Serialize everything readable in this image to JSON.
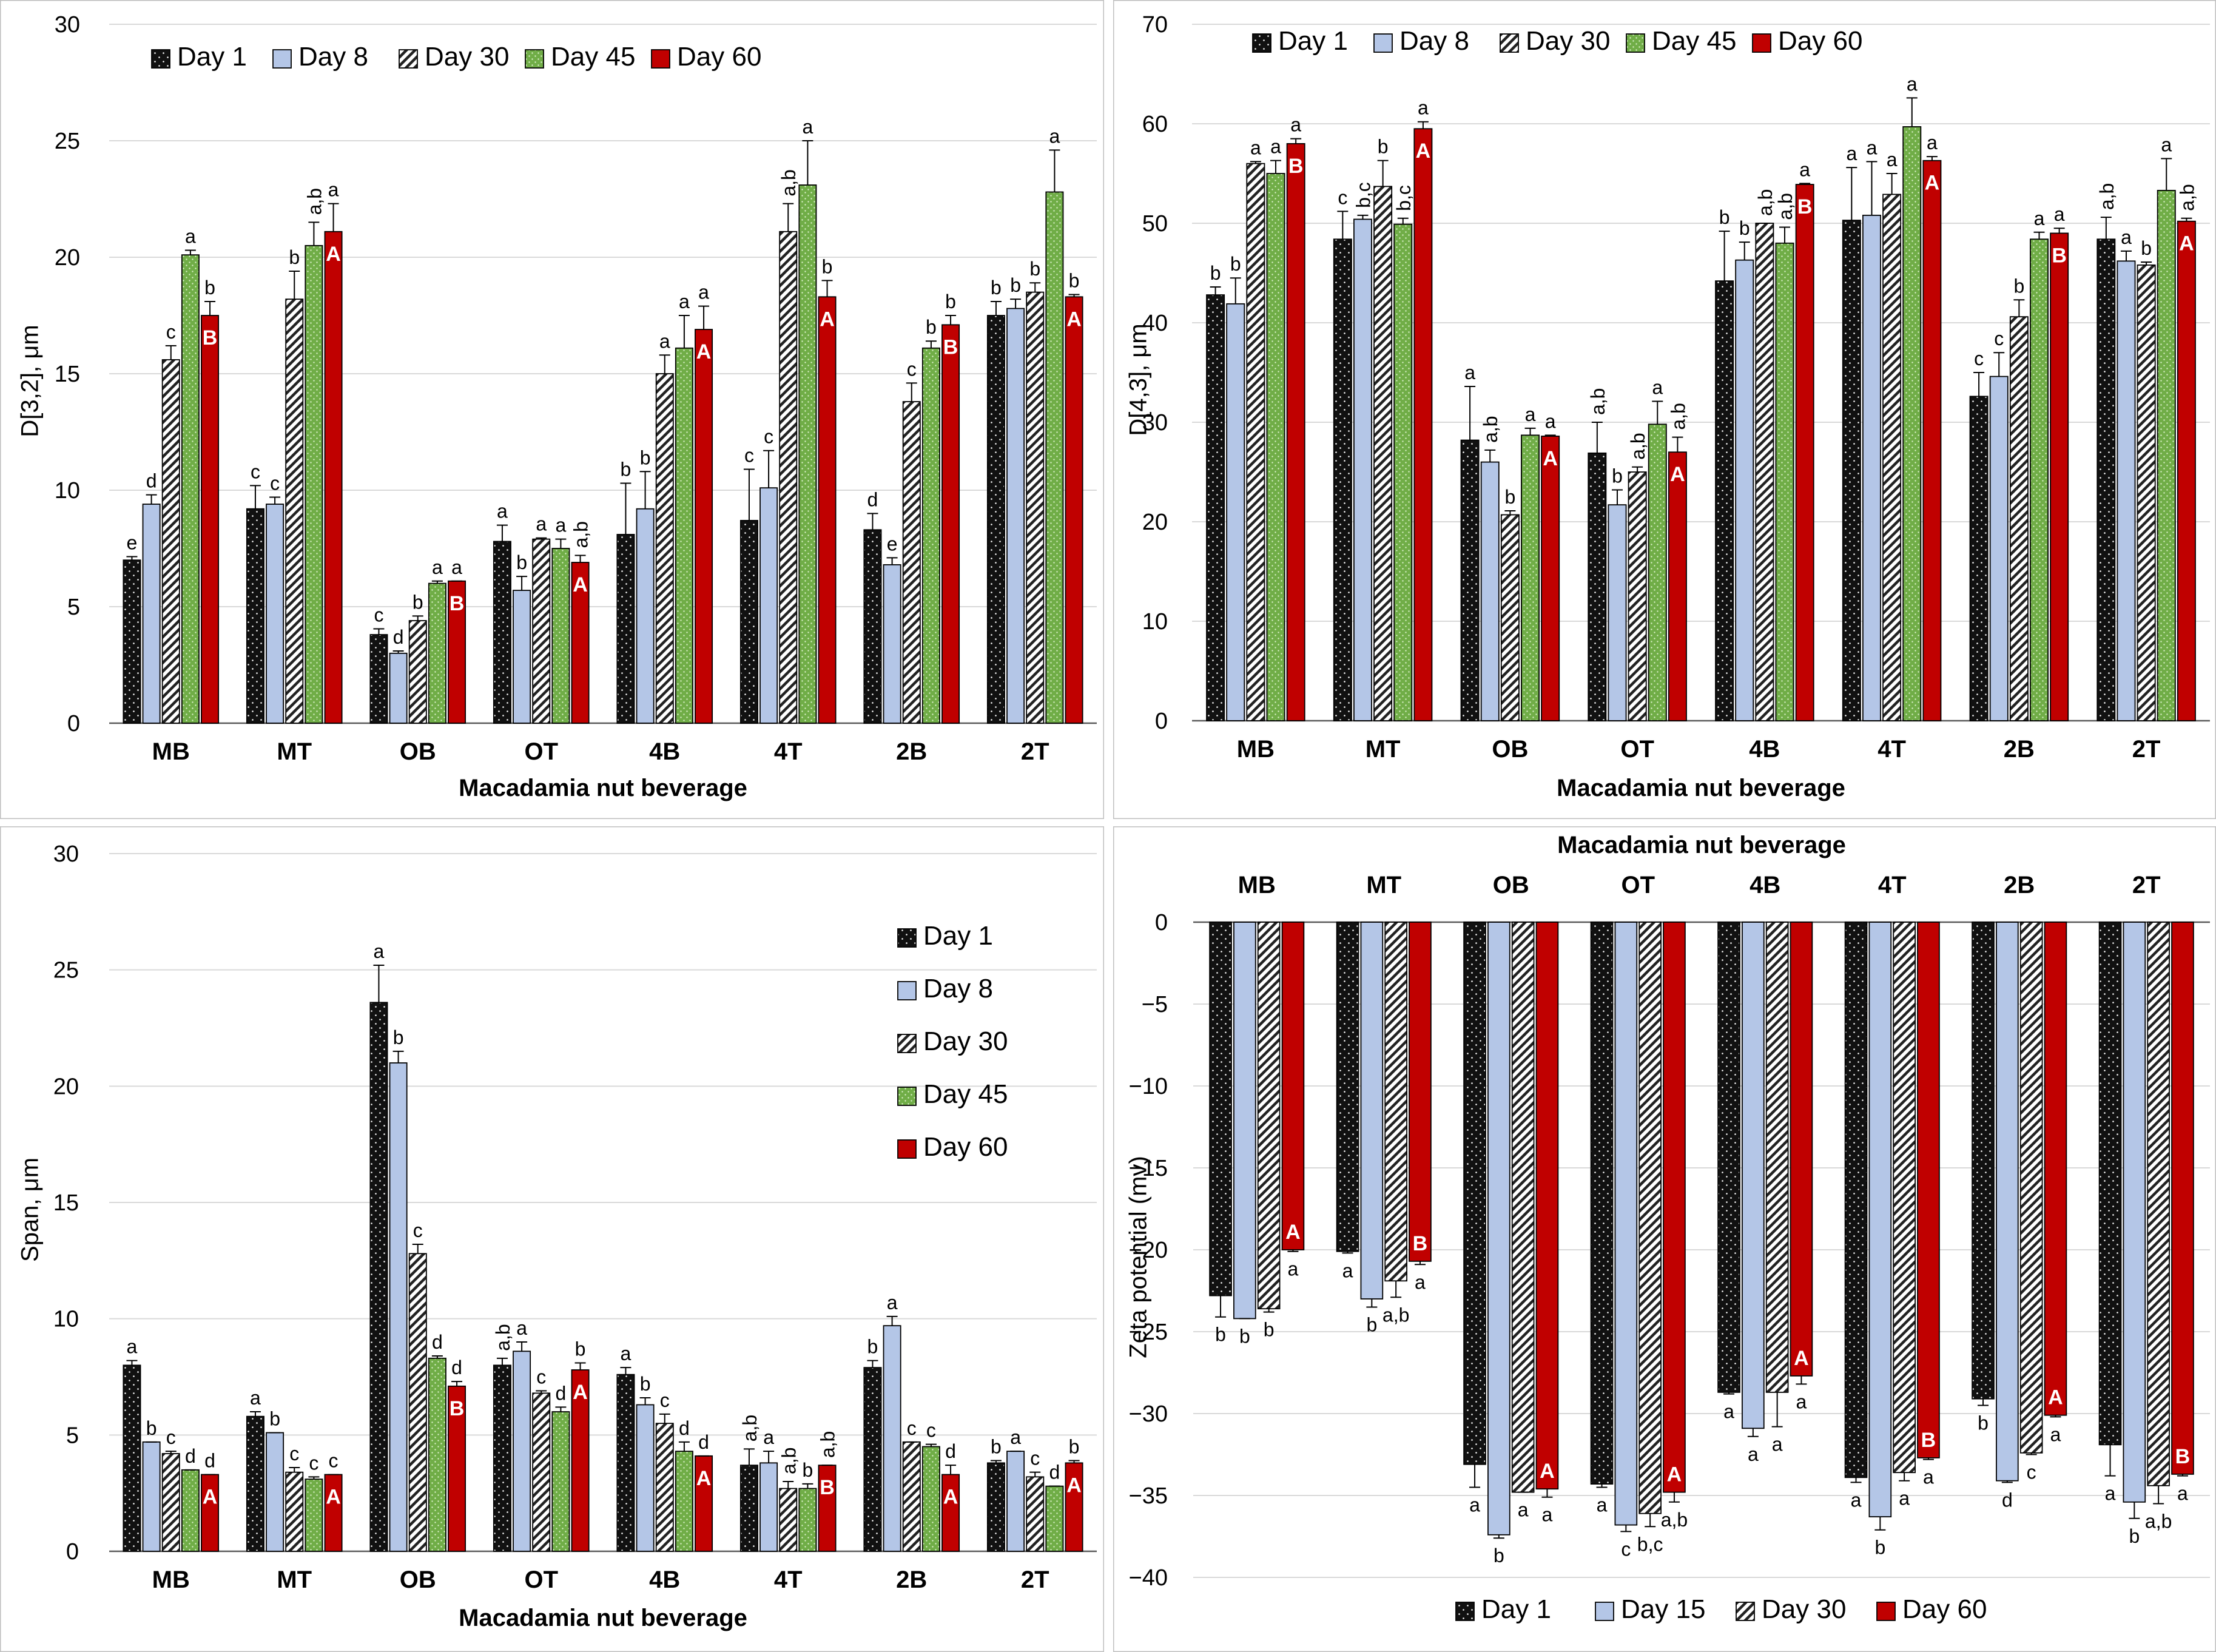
{
  "legend_colors": {
    "Day 1": "#111111",
    "Day 8": "#b4c6e7",
    "Day 15": "#b4c6e7",
    "Day 30": "#ffffff",
    "Day 45": "#70ad47",
    "Day 60": "#c00000"
  },
  "chart_data": [
    {
      "id": "d32",
      "type": "bar",
      "title": "",
      "xlabel": "Macadamia nut beverage",
      "ylabel": "D[3,2], μm",
      "ylim": [
        0,
        30
      ],
      "yticks": [
        0,
        5,
        10,
        15,
        20,
        25,
        30
      ],
      "grid": true,
      "legend_position": "top-left",
      "categories": [
        "MB",
        "MT",
        "OB",
        "OT",
        "4B",
        "4T",
        "2B",
        "2T"
      ],
      "series": [
        {
          "name": "Day 1",
          "values": [
            7.0,
            9.2,
            3.8,
            7.8,
            8.1,
            8.7,
            8.3,
            17.5
          ],
          "errors": [
            0.15,
            1.0,
            0.25,
            0.7,
            2.2,
            2.2,
            0.7,
            0.6
          ],
          "labels": [
            "e",
            "c",
            "c",
            "a",
            "b",
            "c",
            "d",
            "b"
          ]
        },
        {
          "name": "Day 8",
          "values": [
            9.4,
            9.4,
            3.0,
            5.7,
            9.2,
            10.1,
            6.8,
            17.8
          ],
          "errors": [
            0.4,
            0.3,
            0.1,
            0.6,
            1.6,
            1.6,
            0.3,
            0.4
          ],
          "labels": [
            "d",
            "c",
            "d",
            "b",
            "b",
            "c",
            "e",
            "b"
          ]
        },
        {
          "name": "Day 30",
          "values": [
            15.6,
            18.2,
            4.4,
            7.9,
            15.0,
            21.1,
            13.8,
            18.5
          ],
          "errors": [
            0.6,
            1.2,
            0.2,
            0.05,
            0.8,
            1.2,
            0.8,
            0.4
          ],
          "labels": [
            "c",
            "b",
            "b",
            "a",
            "a",
            "a,b",
            "c",
            "b"
          ]
        },
        {
          "name": "Day 45",
          "values": [
            20.1,
            20.5,
            6.0,
            7.5,
            16.1,
            23.1,
            16.1,
            22.8
          ],
          "errors": [
            0.2,
            1.0,
            0.1,
            0.4,
            1.4,
            1.9,
            0.3,
            1.8
          ],
          "labels": [
            "a",
            "a,b",
            "a",
            "a",
            "a",
            "a",
            "b",
            "a"
          ]
        },
        {
          "name": "Day 60",
          "values": [
            17.5,
            21.1,
            6.1,
            6.9,
            16.9,
            18.3,
            17.1,
            18.3
          ],
          "errors": [
            0.6,
            1.2,
            0.0,
            0.3,
            1.0,
            0.7,
            0.4,
            0.1
          ],
          "labels": [
            "b",
            "a",
            "a",
            "a,b",
            "a",
            "b",
            "b",
            "b"
          ],
          "inner_labels": [
            "B",
            "A",
            "B",
            "A",
            "A",
            "A",
            "B",
            "A"
          ]
        }
      ]
    },
    {
      "id": "d43",
      "type": "bar",
      "title": "",
      "xlabel": "Macadamia nut beverage",
      "ylabel": "D[4,3], μm",
      "ylim": [
        0,
        70
      ],
      "yticks": [
        0,
        10,
        20,
        30,
        40,
        50,
        60,
        70
      ],
      "grid": true,
      "legend_position": "top-left",
      "categories": [
        "MB",
        "MT",
        "OB",
        "OT",
        "4B",
        "4T",
        "2B",
        "2T"
      ],
      "series": [
        {
          "name": "Day 1",
          "values": [
            42.8,
            48.4,
            28.2,
            26.9,
            44.2,
            50.3,
            32.6,
            48.4
          ],
          "errors": [
            0.8,
            2.8,
            5.4,
            3.1,
            5.0,
            5.3,
            2.4,
            2.2
          ],
          "labels": [
            "b",
            "c",
            "a",
            "a,b",
            "b",
            "a",
            "c",
            "a,b"
          ]
        },
        {
          "name": "Day 8",
          "values": [
            41.9,
            50.4,
            26.0,
            21.7,
            46.3,
            50.8,
            34.6,
            46.2
          ],
          "errors": [
            2.6,
            0.4,
            1.2,
            1.5,
            1.8,
            5.4,
            2.4,
            1.0
          ],
          "labels": [
            "b",
            "b,c",
            "a,b",
            "b",
            "b",
            "a",
            "c",
            "a"
          ]
        },
        {
          "name": "Day 30",
          "values": [
            56.0,
            53.7,
            20.7,
            25.0,
            50.0,
            52.9,
            40.6,
            45.8
          ],
          "errors": [
            0.2,
            2.6,
            0.4,
            0.5,
            0.0,
            2.1,
            1.7,
            0.3
          ],
          "labels": [
            "a",
            "b",
            "b",
            "a,b",
            "a,b",
            "a",
            "b",
            "b"
          ]
        },
        {
          "name": "Day 45",
          "values": [
            55.0,
            49.9,
            28.7,
            29.8,
            48.0,
            59.7,
            48.4,
            53.3
          ],
          "errors": [
            1.3,
            0.6,
            0.7,
            2.3,
            1.6,
            2.9,
            0.7,
            3.2
          ],
          "labels": [
            "a",
            "b,c",
            "a",
            "a",
            "a,b",
            "a",
            "a",
            "a"
          ]
        },
        {
          "name": "Day 60",
          "values": [
            58.0,
            59.5,
            28.6,
            27.0,
            53.9,
            56.3,
            49.0,
            50.2
          ],
          "errors": [
            0.5,
            0.7,
            0.1,
            1.5,
            0.1,
            0.4,
            0.5,
            0.3
          ],
          "labels": [
            "a",
            "a",
            "a",
            "a,b",
            "a",
            "a",
            "a",
            "a,b"
          ],
          "inner_labels": [
            "B",
            "A",
            "A",
            "A",
            "B",
            "A",
            "B",
            "A"
          ]
        }
      ]
    },
    {
      "id": "span",
      "type": "bar",
      "title": "",
      "xlabel": "Macadamia nut beverage",
      "ylabel": "Span, μm",
      "ylim": [
        0,
        30
      ],
      "yticks": [
        0,
        5,
        10,
        15,
        20,
        25,
        30
      ],
      "grid": true,
      "legend_position": "top-right",
      "categories": [
        "MB",
        "MT",
        "OB",
        "OT",
        "4B",
        "4T",
        "2B",
        "2T"
      ],
      "series": [
        {
          "name": "Day 1",
          "values": [
            8.0,
            5.8,
            23.6,
            8.0,
            7.6,
            3.7,
            7.9,
            3.8
          ],
          "errors": [
            0.2,
            0.2,
            1.6,
            0.3,
            0.3,
            0.7,
            0.3,
            0.1
          ],
          "labels": [
            "a",
            "a",
            "a",
            "a,b",
            "a",
            "a,b",
            "b",
            "b"
          ]
        },
        {
          "name": "Day 8",
          "values": [
            4.7,
            5.1,
            21.0,
            8.6,
            6.3,
            3.8,
            9.7,
            4.3
          ],
          "errors": [
            0.0,
            0.0,
            0.5,
            0.4,
            0.3,
            0.5,
            0.4,
            0.0
          ],
          "labels": [
            "b",
            "b",
            "b",
            "a",
            "b",
            "a",
            "a",
            "a"
          ]
        },
        {
          "name": "Day 30",
          "values": [
            4.2,
            3.4,
            12.8,
            6.8,
            5.5,
            2.7,
            4.7,
            3.2
          ],
          "errors": [
            0.1,
            0.2,
            0.4,
            0.1,
            0.4,
            0.3,
            0.0,
            0.2
          ],
          "labels": [
            "c",
            "c",
            "c",
            "c",
            "c",
            "a,b",
            "c",
            "c"
          ]
        },
        {
          "name": "Day 45",
          "values": [
            3.5,
            3.1,
            8.3,
            6.0,
            4.3,
            2.7,
            4.5,
            2.8
          ],
          "errors": [
            0.0,
            0.1,
            0.1,
            0.2,
            0.4,
            0.2,
            0.1,
            0.0
          ],
          "labels": [
            "d",
            "c",
            "d",
            "d",
            "d",
            "b",
            "c",
            "d"
          ]
        },
        {
          "name": "Day 60",
          "values": [
            3.3,
            3.3,
            7.1,
            7.8,
            4.1,
            3.7,
            3.3,
            3.8
          ],
          "errors": [
            0.0,
            0.0,
            0.2,
            0.3,
            0.0,
            0.0,
            0.4,
            0.1
          ],
          "labels": [
            "d",
            "c",
            "d",
            "b",
            "d",
            "a,b",
            "d",
            "b"
          ],
          "inner_labels": [
            "A",
            "A",
            "B",
            "A",
            "A",
            "B",
            "A",
            "A"
          ]
        }
      ]
    },
    {
      "id": "zeta",
      "type": "bar",
      "title": "Macadamia nut beverage",
      "xlabel": "",
      "ylabel": "Zeta potential (mv)",
      "ylim": [
        -40,
        0
      ],
      "yticks": [
        0,
        -5,
        -10,
        -15,
        -20,
        -25,
        -30,
        -35,
        -40
      ],
      "grid": true,
      "legend_position": "bottom",
      "categories": [
        "MB",
        "MT",
        "OB",
        "OT",
        "4B",
        "4T",
        "2B",
        "2T"
      ],
      "series": [
        {
          "name": "Day 1",
          "values": [
            -22.8,
            -20.1,
            -33.1,
            -34.3,
            -28.7,
            -33.9,
            -29.1,
            -31.9
          ],
          "errors": [
            1.3,
            0.1,
            1.4,
            0.2,
            0.1,
            0.3,
            0.4,
            1.9
          ],
          "labels": [
            "b",
            "a",
            "a",
            "a",
            "a",
            "a",
            "b",
            "a"
          ]
        },
        {
          "name": "Day 15",
          "values": [
            -24.2,
            -23.0,
            -37.4,
            -36.8,
            -30.9,
            -36.3,
            -34.1,
            -35.4
          ],
          "errors": [
            0.0,
            0.5,
            0.2,
            0.4,
            0.5,
            0.8,
            0.1,
            1.0
          ],
          "labels": [
            "b",
            "b",
            "b",
            "c",
            "a",
            "b",
            "d",
            "b"
          ]
        },
        {
          "name": "Day 30",
          "values": [
            -23.6,
            -21.9,
            -34.8,
            -36.1,
            -28.7,
            -33.6,
            -32.4,
            -34.4
          ],
          "errors": [
            0.2,
            1.0,
            0.0,
            0.8,
            2.1,
            0.5,
            0.1,
            1.1
          ],
          "labels": [
            "b",
            "a,b",
            "a",
            "b,c",
            "a",
            "a",
            "c",
            "a,b"
          ]
        },
        {
          "name": "Day 60",
          "values": [
            -20.0,
            -20.7,
            -34.6,
            -34.8,
            -27.7,
            -32.7,
            -30.1,
            -33.7
          ],
          "errors": [
            0.1,
            0.2,
            0.5,
            0.6,
            0.5,
            0.1,
            0.1,
            0.1
          ],
          "labels": [
            "a",
            "a",
            "a",
            "a,b",
            "a",
            "a",
            "a",
            "a"
          ],
          "inner_labels": [
            "A",
            "B",
            "A",
            "A",
            "A",
            "B",
            "A",
            "B"
          ]
        }
      ]
    }
  ]
}
